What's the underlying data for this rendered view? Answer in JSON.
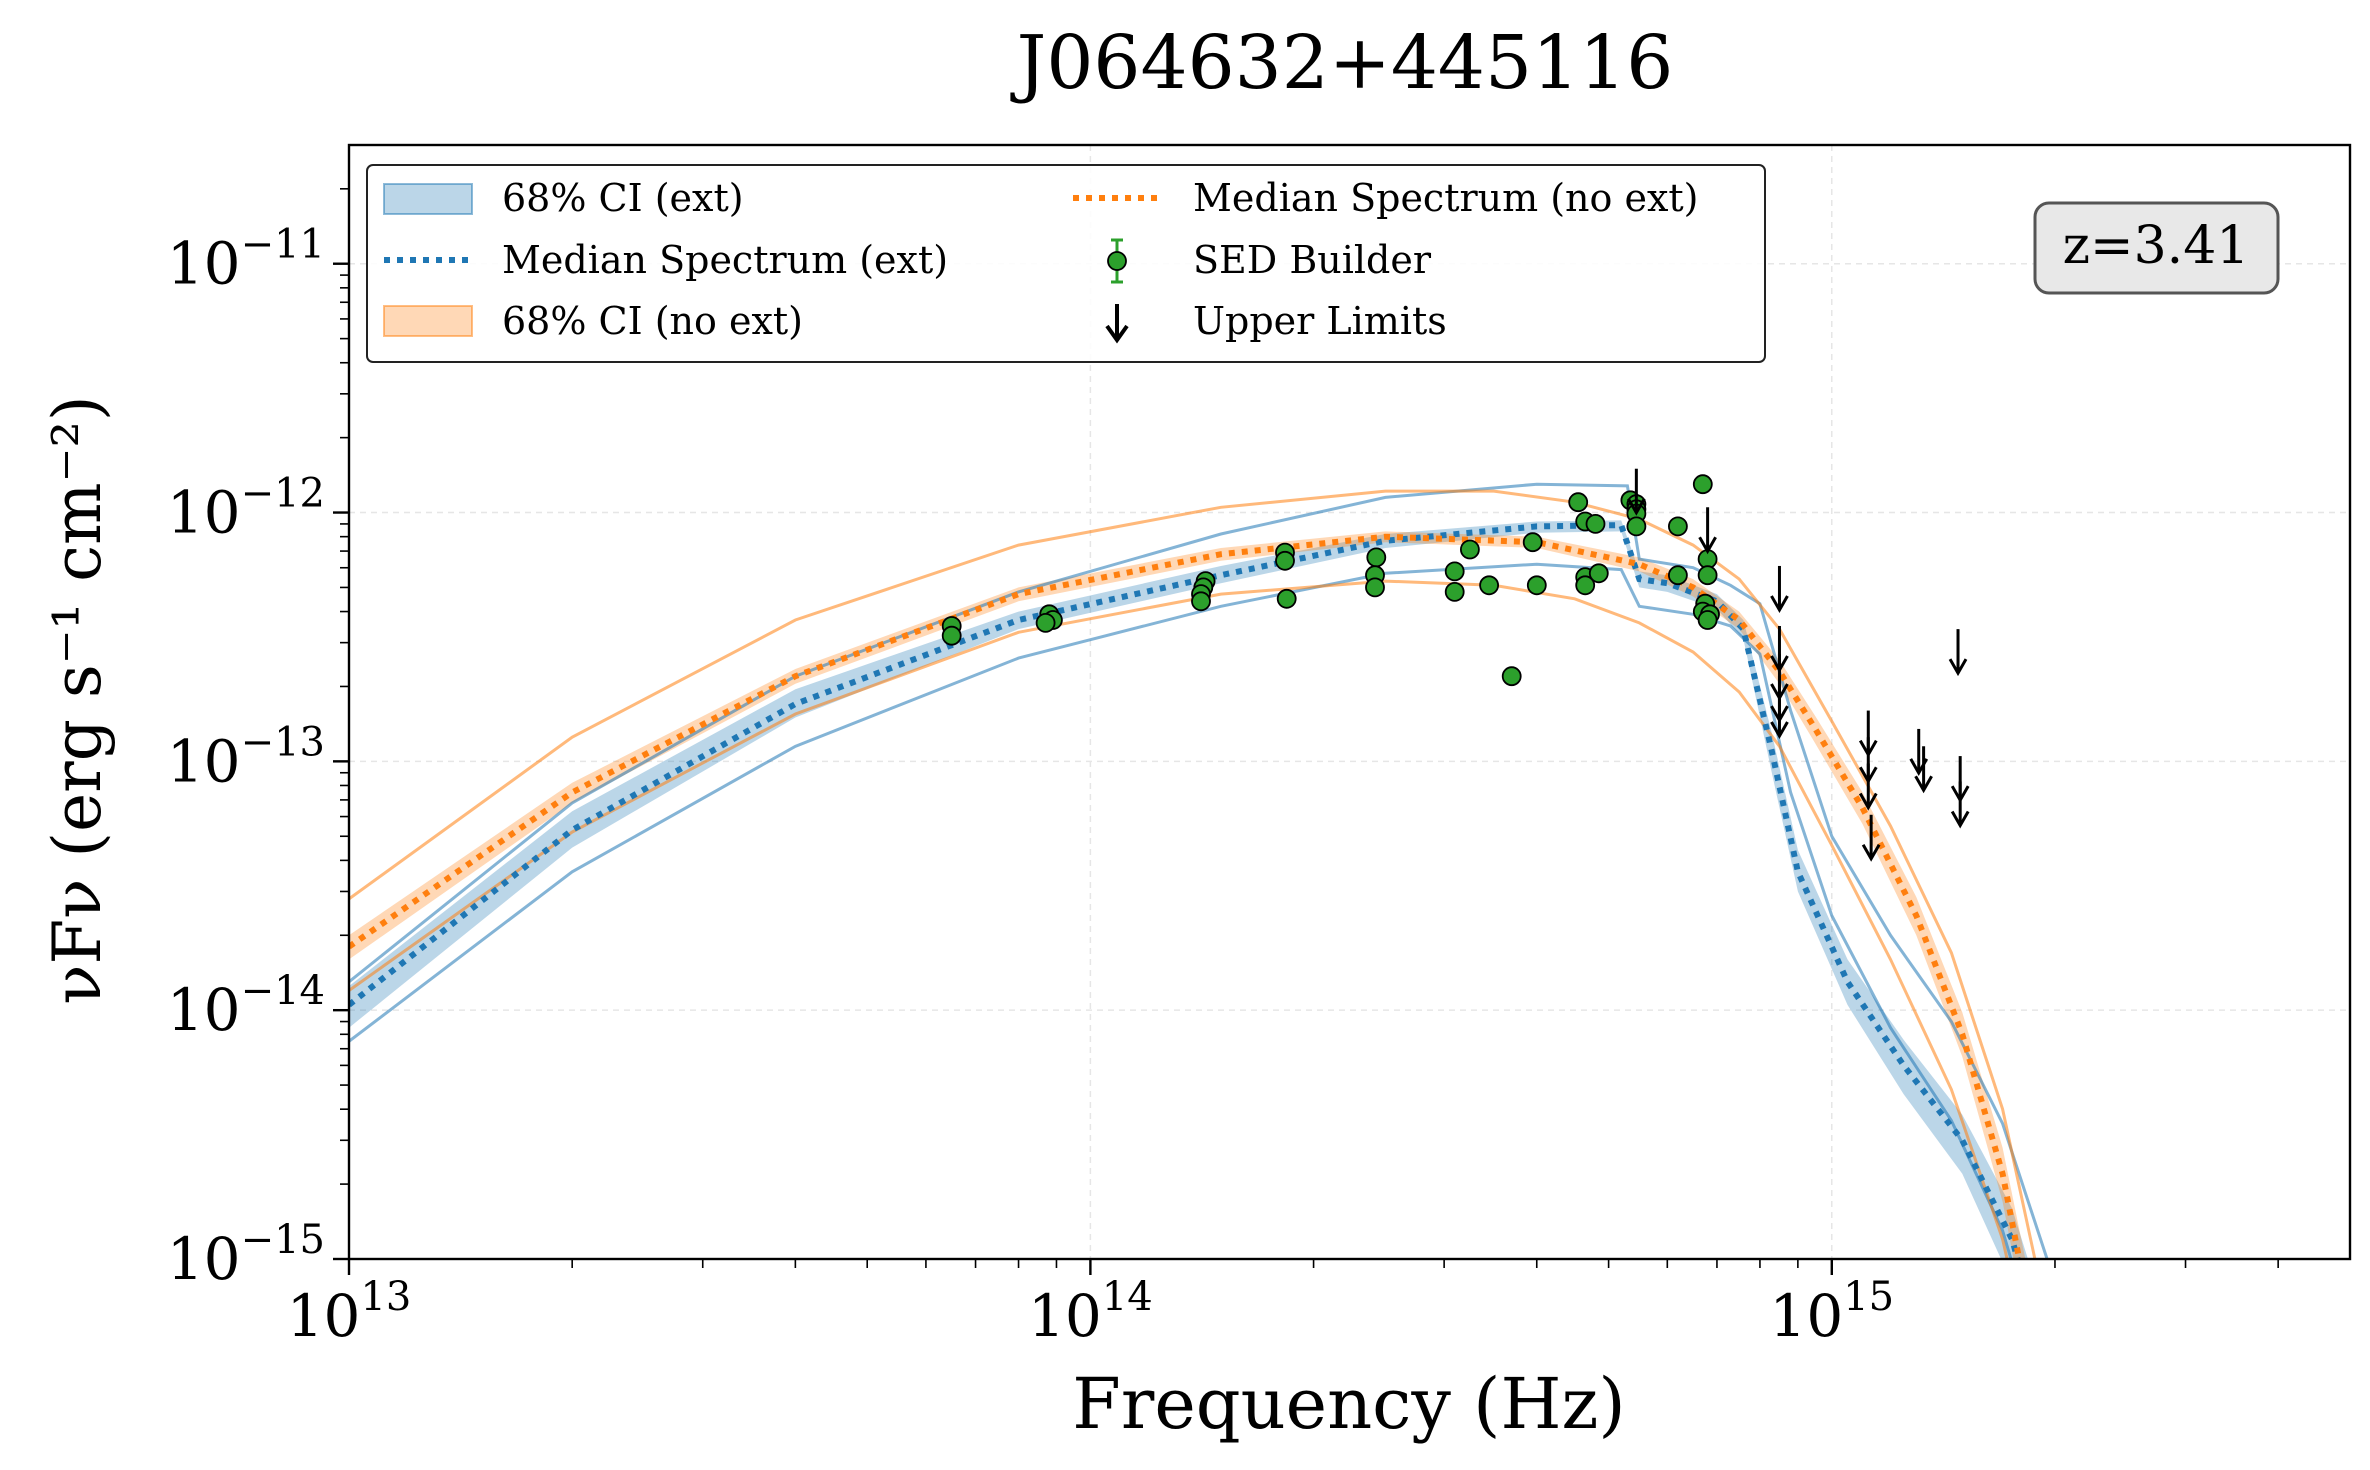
{
  "chart_data": {
    "type": "line",
    "title": "J064632+445116",
    "xlabel": "Frequency (Hz)",
    "ylabel": "νFν (erg s⁻¹ cm⁻²)",
    "xscale": "log",
    "yscale": "log",
    "xlim": [
      10000000000000.0,
      5000000000000000.0
    ],
    "ylim": [
      1e-15,
      3e-11
    ],
    "grid": true,
    "redshift_label": "z=3.41",
    "x_ticks": [
      {
        "value": 10000000000000.0,
        "label": "10",
        "exp": "13"
      },
      {
        "value": 100000000000000.0,
        "label": "10",
        "exp": "14"
      },
      {
        "value": 1000000000000000.0,
        "label": "10",
        "exp": "15"
      }
    ],
    "y_ticks": [
      {
        "value": 1e-15,
        "label": "10",
        "exp": "−15"
      },
      {
        "value": 1e-14,
        "label": "10",
        "exp": "−14"
      },
      {
        "value": 1e-13,
        "label": "10",
        "exp": "−13"
      },
      {
        "value": 1e-12,
        "label": "10",
        "exp": "−12"
      },
      {
        "value": 1e-11,
        "label": "10",
        "exp": "−11"
      }
    ],
    "legend": {
      "position": "upper left",
      "entries": [
        {
          "key": "ci_ext",
          "label": "68% CI (ext)",
          "style": "band",
          "color": "#1f77b4"
        },
        {
          "key": "median_ext",
          "label": "Median Spectrum (ext)",
          "style": "dotted",
          "color": "#1f77b4"
        },
        {
          "key": "ci_noext",
          "label": "68% CI (no ext)",
          "style": "band",
          "color": "#ff7f0e"
        },
        {
          "key": "median_noext",
          "label": "Median Spectrum (no ext)",
          "style": "dotted",
          "color": "#ff7f0e"
        },
        {
          "key": "sed",
          "label": "SED Builder",
          "style": "marker",
          "color": "#2ca02c"
        },
        {
          "key": "ul",
          "label": "Upper Limits",
          "style": "arrow",
          "color": "#000000"
        }
      ]
    },
    "colors": {
      "ext": "#1f77b4",
      "noext": "#ff7f0e",
      "sed": "#2ca02c",
      "sed_edge": "#000000",
      "grid": "#e6e6e6"
    },
    "series": [
      {
        "name": "Median Spectrum (ext)",
        "x": [
          10000000000000.0,
          20000000000000.0,
          40000000000000.0,
          80000000000000.0,
          150000000000000.0,
          250000000000000.0,
          400000000000000.0,
          520000000000000.0,
          550000000000000.0,
          600000000000000.0,
          700000000000000.0,
          760000000000000.0,
          830000000000000.0,
          900000000000000.0,
          1050000000000000.0,
          1250000000000000.0,
          1500000000000000.0,
          1750000000000000.0,
          2000000000000000.0
        ],
        "y": [
          1.05e-14,
          5.3e-14,
          1.7e-13,
          3.7e-13,
          5.6e-13,
          7.7e-13,
          8.8e-13,
          8.9e-13,
          5.4e-13,
          5.2e-13,
          4.4e-13,
          3.4e-13,
          1.1e-13,
          3.6e-14,
          1.3e-14,
          6e-15,
          3e-15,
          1.2e-15,
          3e-16
        ],
        "band_low": [
          8.5e-15,
          4.5e-14,
          1.5e-13,
          3.4e-13,
          5.2e-13,
          7.2e-13,
          8.3e-13,
          8.4e-13,
          5e-13,
          4.8e-13,
          4.1e-13,
          3.1e-13,
          9e-14,
          3e-14,
          1.05e-14,
          4.6e-15,
          2.2e-15,
          8e-16,
          2e-16
        ],
        "band_high": [
          1.25e-14,
          6.3e-14,
          1.95e-13,
          4e-13,
          6.1e-13,
          8.2e-13,
          9.2e-13,
          9.3e-13,
          5.8e-13,
          5.6e-13,
          4.7e-13,
          3.7e-13,
          1.3e-13,
          4.4e-14,
          1.6e-14,
          7.6e-15,
          3.8e-15,
          1.6e-15,
          4.5e-16
        ]
      },
      {
        "name": "Median Spectrum (no ext)",
        "x": [
          10000000000000.0,
          20000000000000.0,
          40000000000000.0,
          80000000000000.0,
          150000000000000.0,
          250000000000000.0,
          400000000000000.0,
          550000000000000.0,
          650000000000000.0,
          750000000000000.0,
          850000000000000.0,
          950000000000000.0,
          1100000000000000.0,
          1300000000000000.0,
          1500000000000000.0,
          1700000000000000.0,
          1900000000000000.0
        ],
        "y": [
          1.8e-14,
          7.5e-14,
          2.2e-13,
          4.7e-13,
          6.8e-13,
          8e-13,
          7.6e-13,
          6.2e-13,
          5e-13,
          3.7e-13,
          2.3e-13,
          1.35e-13,
          6.5e-14,
          2.4e-14,
          8e-15,
          2.2e-15,
          4e-16
        ],
        "band_low": [
          1.6e-14,
          6.8e-14,
          2.05e-13,
          4.4e-13,
          6.4e-13,
          7.6e-13,
          7.2e-13,
          5.8e-13,
          4.6e-13,
          3.4e-13,
          2.05e-13,
          1.18e-13,
          5.6e-14,
          2e-14,
          6.5e-15,
          1.7e-15,
          3e-16
        ],
        "band_high": [
          2e-14,
          8.2e-14,
          2.35e-13,
          5e-13,
          7.2e-13,
          8.4e-13,
          8e-13,
          6.6e-13,
          5.4e-13,
          4e-13,
          2.55e-13,
          1.52e-13,
          7.5e-14,
          2.85e-14,
          9.8e-15,
          2.8e-15,
          5.5e-16
        ]
      }
    ],
    "envelopes": [
      {
        "group": "ext",
        "x": [
          10000000000000.0,
          20000000000000.0,
          40000000000000.0,
          80000000000000.0,
          150000000000000.0,
          250000000000000.0,
          400000000000000.0,
          530000000000000.0,
          550000000000000.0,
          650000000000000.0,
          730000000000000.0,
          800000000000000.0,
          880000000000000.0,
          1000000000000000.0,
          1200000000000000.0,
          1450000000000000.0,
          1700000000000000.0,
          2000000000000000.0
        ],
        "y": [
          1.3e-14,
          6.8e-14,
          2.2e-13,
          4.8e-13,
          8.2e-13,
          1.15e-12,
          1.3e-12,
          1.28e-12,
          6.5e-13,
          6e-13,
          5.1e-13,
          4.3e-13,
          1.6e-13,
          5e-14,
          2e-14,
          9e-15,
          3.5e-15,
          8e-16
        ]
      },
      {
        "group": "ext",
        "x": [
          10000000000000.0,
          20000000000000.0,
          40000000000000.0,
          80000000000000.0,
          150000000000000.0,
          250000000000000.0,
          400000000000000.0,
          520000000000000.0,
          550000000000000.0,
          650000000000000.0,
          730000000000000.0,
          800000000000000.0,
          880000000000000.0,
          1000000000000000.0,
          1200000000000000.0,
          1450000000000000.0,
          1700000000000000.0,
          2000000000000000.0
        ],
        "y": [
          7.5e-15,
          3.6e-14,
          1.15e-13,
          2.6e-13,
          4.2e-13,
          5.7e-13,
          6.2e-13,
          5.9e-13,
          4.2e-13,
          3.9e-13,
          3.5e-13,
          2.7e-13,
          7.5e-14,
          2.4e-14,
          8.5e-15,
          3.6e-15,
          1.3e-15,
          2.5e-16
        ]
      },
      {
        "group": "noext",
        "x": [
          10000000000000.0,
          20000000000000.0,
          40000000000000.0,
          80000000000000.0,
          150000000000000.0,
          250000000000000.0,
          350000000000000.0,
          450000000000000.0,
          550000000000000.0,
          650000000000000.0,
          750000000000000.0,
          850000000000000.0,
          1000000000000000.0,
          1200000000000000.0,
          1450000000000000.0,
          1700000000000000.0,
          1950000000000000.0
        ],
        "y": [
          2.8e-14,
          1.25e-13,
          3.7e-13,
          7.4e-13,
          1.05e-12,
          1.22e-12,
          1.22e-12,
          1.1e-12,
          9.4e-13,
          7.4e-13,
          5.4e-13,
          3.4e-13,
          1.45e-13,
          5.5e-14,
          1.7e-14,
          4e-15,
          6e-16
        ]
      },
      {
        "group": "noext",
        "x": [
          10000000000000.0,
          20000000000000.0,
          40000000000000.0,
          80000000000000.0,
          150000000000000.0,
          250000000000000.0,
          350000000000000.0,
          450000000000000.0,
          550000000000000.0,
          650000000000000.0,
          750000000000000.0,
          850000000000000.0,
          1000000000000000.0,
          1200000000000000.0,
          1450000000000000.0,
          1700000000000000.0,
          1950000000000000.0
        ],
        "y": [
          1.2e-14,
          5.2e-14,
          1.55e-13,
          3.3e-13,
          4.7e-13,
          5.3e-13,
          5.1e-13,
          4.5e-13,
          3.6e-13,
          2.75e-13,
          1.9e-13,
          1.15e-13,
          4.6e-14,
          1.6e-14,
          4.8e-15,
          1.2e-15,
          2e-16
        ]
      }
    ],
    "sed_points": [
      {
        "x": 65000000000000.0,
        "y": 3.5e-13
      },
      {
        "x": 65000000000000.0,
        "y": 3.2e-13
      },
      {
        "x": 88000000000000.0,
        "y": 3.9e-13
      },
      {
        "x": 89000000000000.0,
        "y": 3.7e-13
      },
      {
        "x": 87000000000000.0,
        "y": 3.6e-13
      },
      {
        "x": 143000000000000.0,
        "y": 5.3e-13
      },
      {
        "x": 142000000000000.0,
        "y": 5e-13
      },
      {
        "x": 141000000000000.0,
        "y": 4.7e-13
      },
      {
        "x": 141000000000000.0,
        "y": 4.4e-13
      },
      {
        "x": 183000000000000.0,
        "y": 6.9e-13
      },
      {
        "x": 183000000000000.0,
        "y": 6.4e-13
      },
      {
        "x": 184000000000000.0,
        "y": 4.5e-13
      },
      {
        "x": 243000000000000.0,
        "y": 6.6e-13
      },
      {
        "x": 242000000000000.0,
        "y": 5.6e-13
      },
      {
        "x": 242000000000000.0,
        "y": 5e-13
      },
      {
        "x": 310000000000000.0,
        "y": 5.8e-13
      },
      {
        "x": 310000000000000.0,
        "y": 4.8e-13
      },
      {
        "x": 325000000000000.0,
        "y": 7.1e-13
      },
      {
        "x": 345000000000000.0,
        "y": 5.1e-13
      },
      {
        "x": 370000000000000.0,
        "y": 2.2e-13
      },
      {
        "x": 395000000000000.0,
        "y": 7.6e-13
      },
      {
        "x": 400000000000000.0,
        "y": 5.1e-13
      },
      {
        "x": 455000000000000.0,
        "y": 1.1e-12
      },
      {
        "x": 465000000000000.0,
        "y": 9.2e-13
      },
      {
        "x": 480000000000000.0,
        "y": 9e-13
      },
      {
        "x": 465000000000000.0,
        "y": 5.5e-13
      },
      {
        "x": 465000000000000.0,
        "y": 5.1e-13
      },
      {
        "x": 485000000000000.0,
        "y": 5.7e-13
      },
      {
        "x": 535000000000000.0,
        "y": 1.12e-12
      },
      {
        "x": 545000000000000.0,
        "y": 1.08e-12
      },
      {
        "x": 545000000000000.0,
        "y": 1.03e-12
      },
      {
        "x": 545000000000000.0,
        "y": 9.9e-13
      },
      {
        "x": 545000000000000.0,
        "y": 8.8e-13
      },
      {
        "x": 620000000000000.0,
        "y": 8.8e-13
      },
      {
        "x": 620000000000000.0,
        "y": 5.6e-13
      },
      {
        "x": 670000000000000.0,
        "y": 1.3e-12
      },
      {
        "x": 680000000000000.0,
        "y": 6.5e-13
      },
      {
        "x": 680000000000000.0,
        "y": 5.6e-13
      },
      {
        "x": 675000000000000.0,
        "y": 4.3e-13
      },
      {
        "x": 670000000000000.0,
        "y": 4e-13
      },
      {
        "x": 685000000000000.0,
        "y": 3.9e-13
      },
      {
        "x": 680000000000000.0,
        "y": 3.7e-13
      }
    ],
    "upper_limits": [
      {
        "x": 545000000000000.0,
        "y": 1.5e-12
      },
      {
        "x": 680000000000000.0,
        "y": 1.05e-12
      },
      {
        "x": 850000000000000.0,
        "y": 6.1e-13
      },
      {
        "x": 850000000000000.0,
        "y": 3.5e-13
      },
      {
        "x": 850000000000000.0,
        "y": 2.7e-13
      },
      {
        "x": 850000000000000.0,
        "y": 2.2e-13
      },
      {
        "x": 850000000000000.0,
        "y": 1.9e-13
      },
      {
        "x": 1120000000000000.0,
        "y": 1.6e-13
      },
      {
        "x": 1120000000000000.0,
        "y": 1.25e-13
      },
      {
        "x": 1120000000000000.0,
        "y": 9.8e-14
      },
      {
        "x": 1130000000000000.0,
        "y": 6.1e-14
      },
      {
        "x": 1310000000000000.0,
        "y": 1.35e-13
      },
      {
        "x": 1330000000000000.0,
        "y": 1.15e-13
      },
      {
        "x": 1480000000000000.0,
        "y": 3.4e-13
      },
      {
        "x": 1490000000000000.0,
        "y": 1.05e-13
      },
      {
        "x": 1490000000000000.0,
        "y": 8.3e-14
      }
    ]
  }
}
